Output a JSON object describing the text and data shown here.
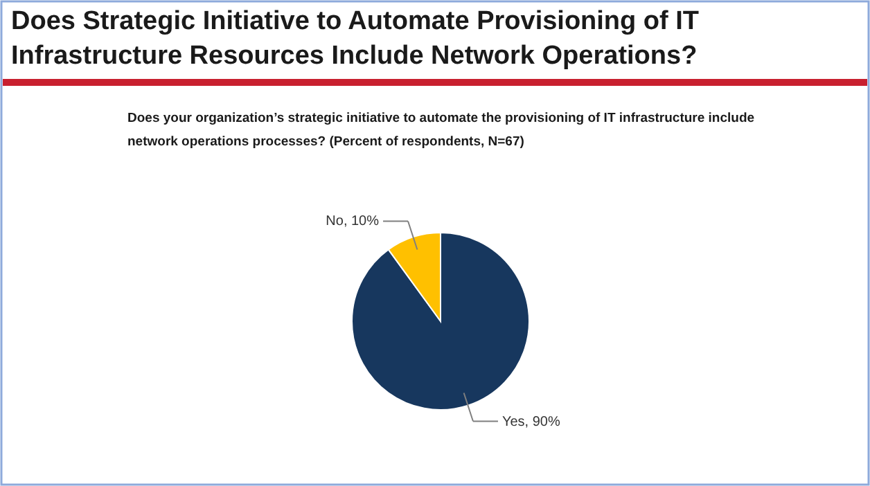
{
  "chart_data": {
    "type": "pie",
    "title": "Does Strategic Initiative to Automate Provisioning of IT Infrastructure Resources Include Network Operations?",
    "subtitle": "Does your organization’s strategic initiative to automate the provisioning of IT infrastructure include network operations processes? (Percent of respondents, N=67)",
    "categories": [
      "Yes",
      "No"
    ],
    "values": [
      90,
      10
    ],
    "colors": [
      "#17375e",
      "#ffc000"
    ],
    "value_labels": [
      "90%",
      "10%"
    ]
  }
}
